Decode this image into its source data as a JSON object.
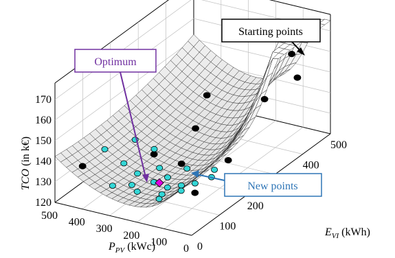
{
  "chart_data": {
    "type": "surface3d-scatter",
    "z_axis": {
      "label_main": "TCO",
      "label_unit": " (in k€)",
      "ticks": [
        "120",
        "130",
        "140",
        "150",
        "160",
        "170"
      ],
      "range": [
        120,
        175
      ]
    },
    "x_axis": {
      "label_main": "P",
      "label_sub": "PV",
      "label_unit": " (kWc)",
      "ticks": [
        "500",
        "400",
        "300",
        "200",
        "100",
        "0"
      ],
      "range": [
        0,
        500
      ]
    },
    "y_axis": {
      "label_main": "E",
      "label_sub": "VI",
      "label_unit": " (kWh)",
      "ticks": [
        "0",
        "100",
        "200",
        "300",
        "400",
        "500"
      ],
      "range": [
        0,
        500
      ]
    },
    "grid": true,
    "series": [
      {
        "name": "Starting points",
        "color": "#000000",
        "points": [
          {
            "x": 460,
            "y": 60,
            "z": 133
          },
          {
            "x": 260,
            "y": 270,
            "z": 137
          },
          {
            "x": 300,
            "y": 160,
            "z": 134
          },
          {
            "x": 220,
            "y": 180,
            "z": 130
          },
          {
            "x": 120,
            "y": 130,
            "z": 124
          },
          {
            "x": 180,
            "y": 440,
            "z": 137
          },
          {
            "x": 70,
            "y": 450,
            "z": 150
          },
          {
            "x": 20,
            "y": 380,
            "z": 170
          },
          {
            "x": 330,
            "y": 380,
            "z": 140
          },
          {
            "x": 120,
            "y": 250,
            "z": 128
          }
        ]
      },
      {
        "name": "New points",
        "color": "#33d6d6",
        "points": [
          {
            "x": 470,
            "y": 150,
            "z": 132
          },
          {
            "x": 430,
            "y": 220,
            "z": 131
          },
          {
            "x": 380,
            "y": 130,
            "z": 130
          },
          {
            "x": 350,
            "y": 210,
            "z": 130
          },
          {
            "x": 320,
            "y": 120,
            "z": 128
          },
          {
            "x": 300,
            "y": 80,
            "z": 127
          },
          {
            "x": 280,
            "y": 160,
            "z": 128
          },
          {
            "x": 250,
            "y": 110,
            "z": 127
          },
          {
            "x": 230,
            "y": 140,
            "z": 127
          },
          {
            "x": 210,
            "y": 190,
            "z": 127
          },
          {
            "x": 200,
            "y": 110,
            "z": 126
          },
          {
            "x": 190,
            "y": 80,
            "z": 126
          },
          {
            "x": 180,
            "y": 60,
            "z": 126
          },
          {
            "x": 170,
            "y": 130,
            "z": 126
          },
          {
            "x": 150,
            "y": 110,
            "z": 126
          },
          {
            "x": 140,
            "y": 150,
            "z": 126
          },
          {
            "x": 130,
            "y": 210,
            "z": 127
          },
          {
            "x": 110,
            "y": 180,
            "z": 127
          },
          {
            "x": 350,
            "y": 60,
            "z": 127
          },
          {
            "x": 260,
            "y": 60,
            "z": 127
          }
        ]
      },
      {
        "name": "Optimum",
        "color": "#e000e0",
        "points": [
          {
            "x": 240,
            "y": 120,
            "z": 126
          }
        ]
      }
    ],
    "annotations": [
      {
        "text": "Starting points",
        "color": "#000000"
      },
      {
        "text": "Optimum",
        "color": "#7030a0"
      },
      {
        "text": "New points",
        "color": "#2e75b6"
      }
    ]
  }
}
